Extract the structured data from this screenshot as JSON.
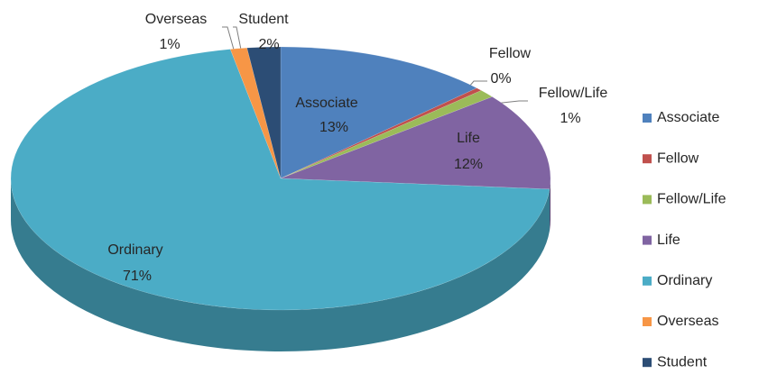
{
  "chart_data": {
    "type": "pie3d",
    "categories": [
      "Associate",
      "Fellow",
      "Fellow/Life",
      "Life",
      "Ordinary",
      "Overseas",
      "Student"
    ],
    "values": [
      13,
      0.4,
      1,
      12,
      71,
      1,
      2
    ],
    "value_labels": [
      "13%",
      "0%",
      "1%",
      "12%",
      "71%",
      "1%",
      "2%"
    ],
    "colors": [
      "#4f81bd",
      "#c0504d",
      "#9bbb59",
      "#8064a2",
      "#4bacc6",
      "#f79646",
      "#2c4d75"
    ],
    "legend": "right"
  }
}
